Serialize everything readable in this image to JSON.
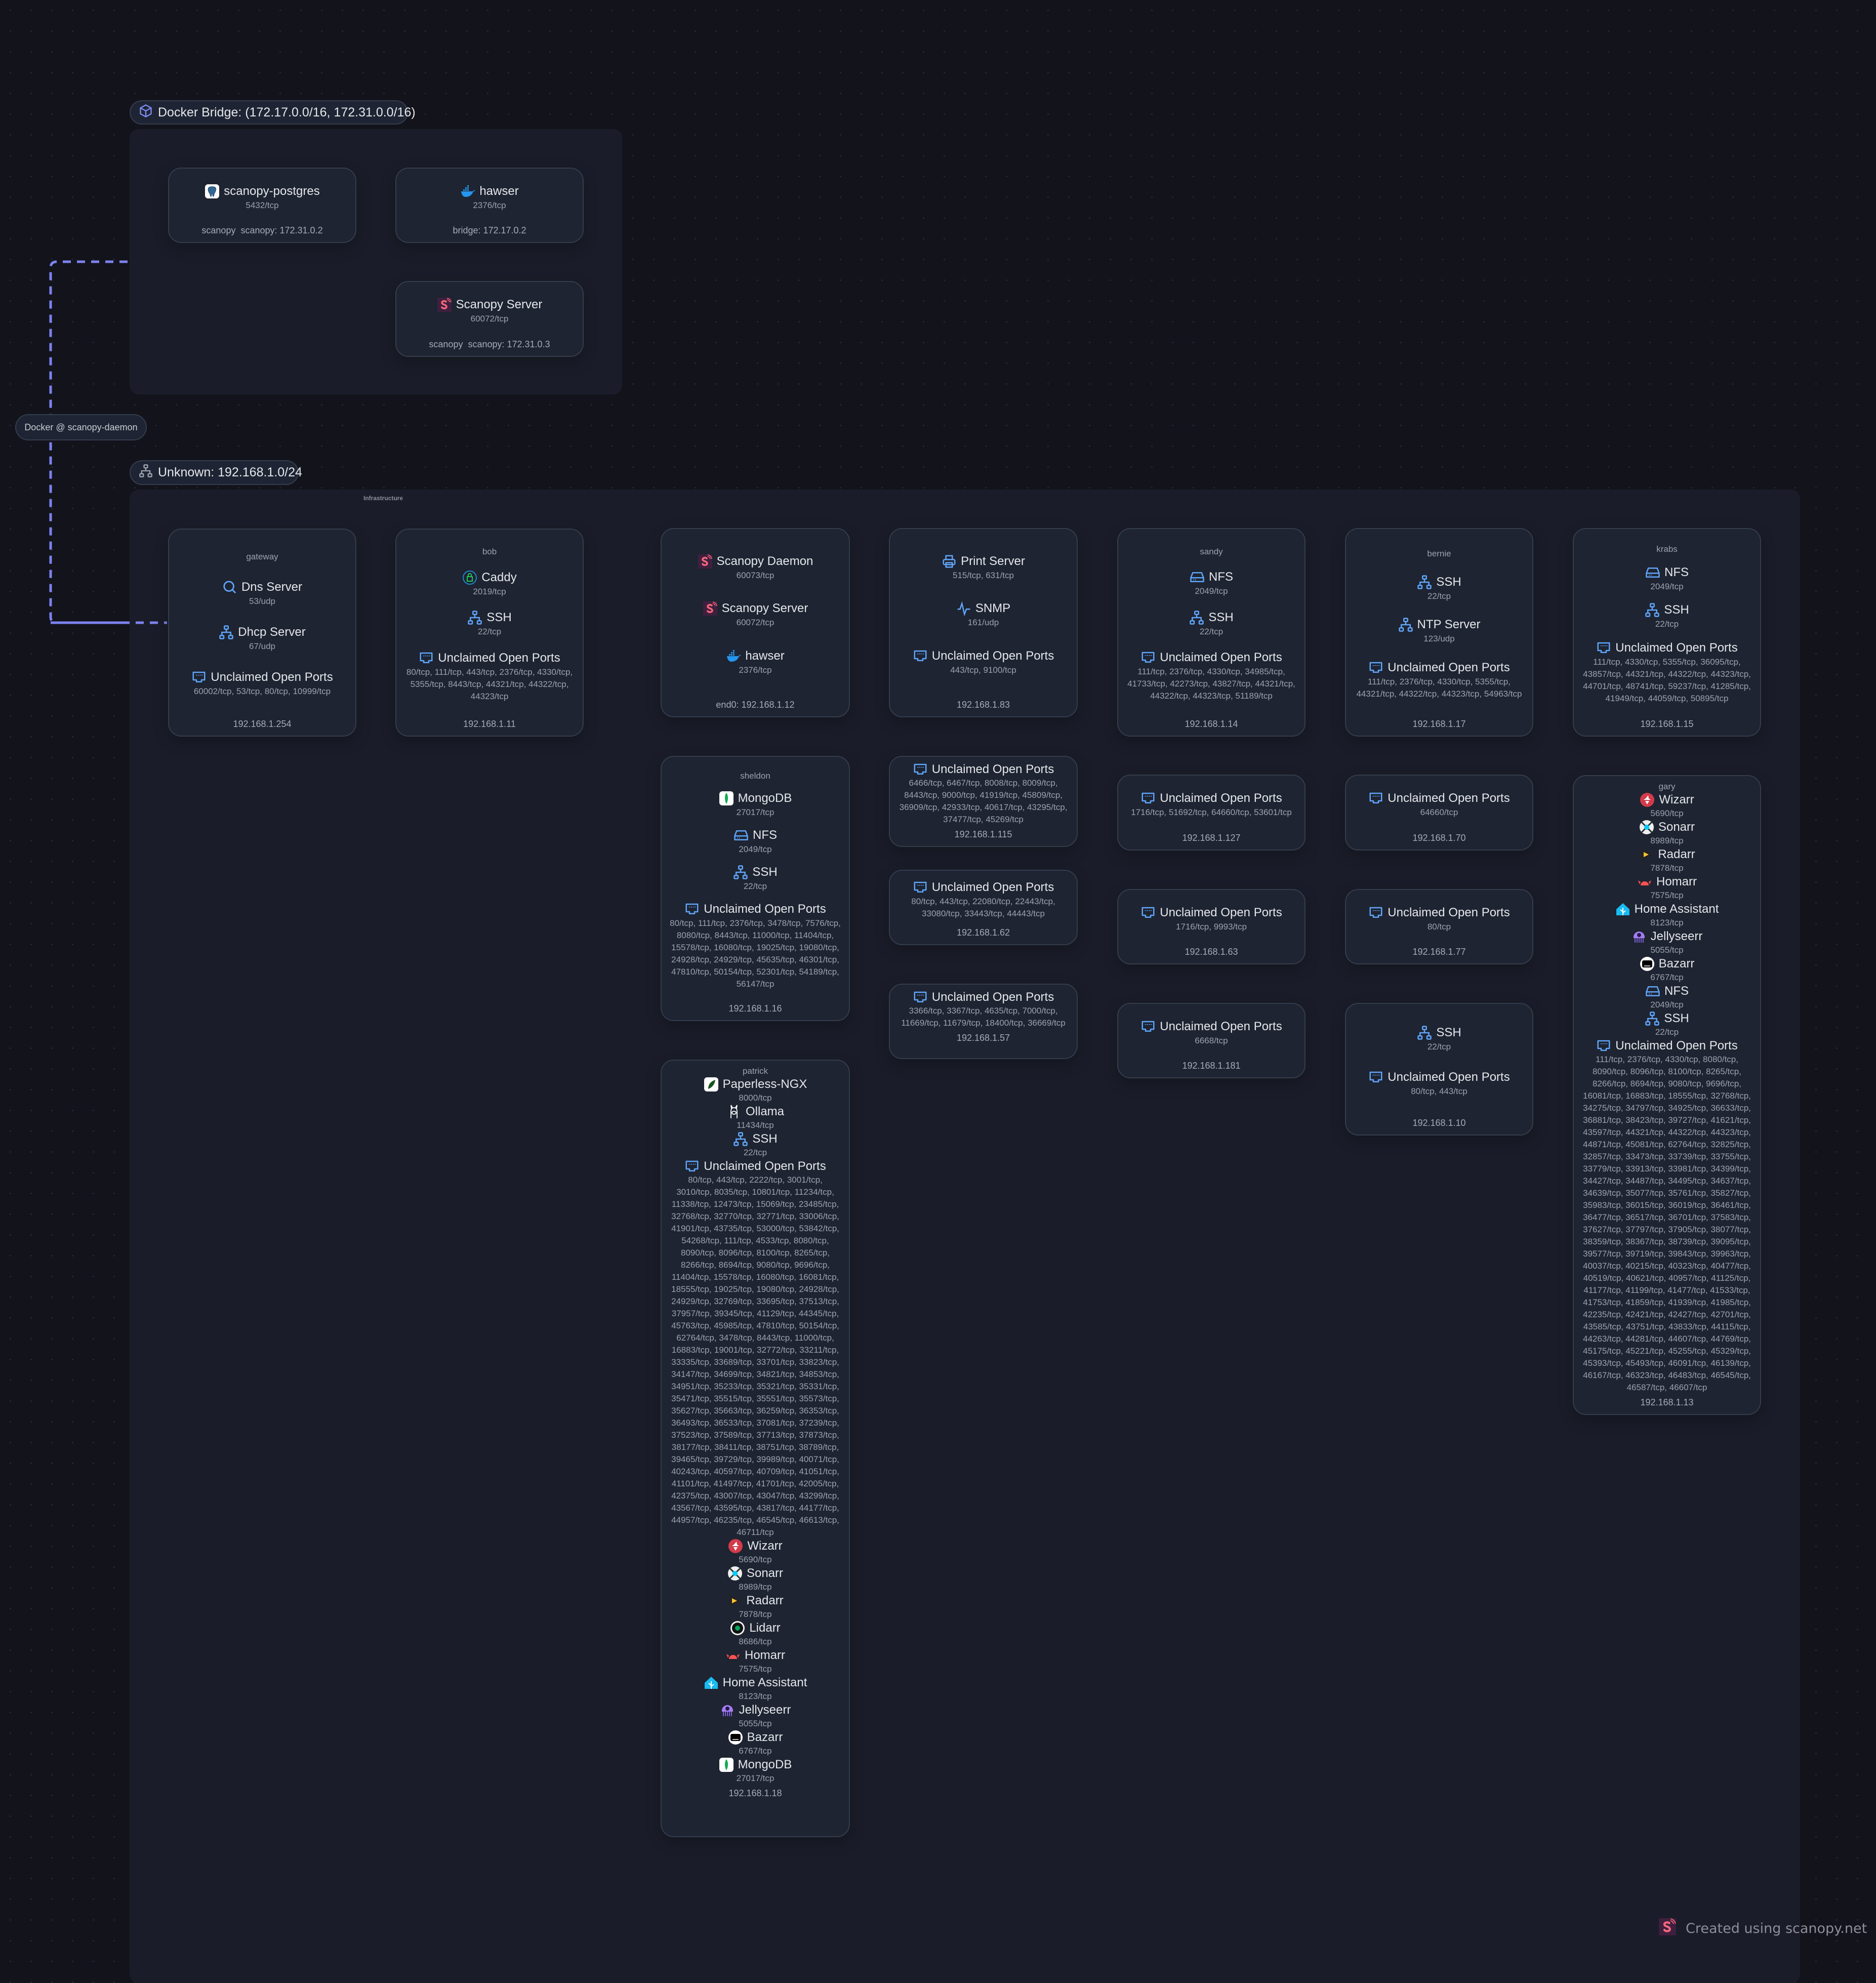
{
  "colors": {
    "canvas": "#13131c",
    "zone": "#1a1d29",
    "card": "#1f2533",
    "border": "#343c4c",
    "edge": "#7c83f0",
    "icon_blue": "#60a5fa"
  },
  "edge": {
    "label": "Docker @ scanopy-daemon",
    "style": "dashed"
  },
  "watermark": {
    "icon": "scanopy",
    "text": "Created using scanopy.net"
  },
  "docker_bridge": {
    "icon": "cube",
    "label": "Docker Bridge: (172.17.0.0/16, 172.31.0.0/16)",
    "hosts": [
      {
        "services": [
          {
            "name": "scanopy-postgres",
            "icon": "postgres",
            "ports": "5432/tcp"
          }
        ],
        "footer": "scanopy  scanopy: 172.31.0.2"
      },
      {
        "services": [
          {
            "name": "hawser",
            "icon": "docker",
            "ports": "2376/tcp"
          }
        ],
        "footer": "bridge: 172.17.0.2"
      },
      {
        "services": [
          {
            "name": "Scanopy Server",
            "icon": "scanopy",
            "ports": "60072/tcp"
          }
        ],
        "footer": "scanopy  scanopy: 172.31.0.3"
      }
    ]
  },
  "unknown_subnet": {
    "icon": "network",
    "label": "Unknown: 192.168.1.0/24",
    "infrastructure_label": "Infrastructure",
    "hosts": [
      {
        "title": "gateway",
        "services": [
          {
            "name": "Dns Server",
            "icon": "search",
            "ports": "53/udp"
          },
          {
            "name": "Dhcp Server",
            "icon": "network",
            "ports": "67/udp"
          },
          {
            "name": "Unclaimed Open Ports",
            "icon": "ethernet-port",
            "ports": "60002/tcp, 53/tcp, 80/tcp, 10999/tcp"
          }
        ],
        "footer": "192.168.1.254"
      },
      {
        "title": "bob",
        "services": [
          {
            "name": "Caddy",
            "icon": "caddy",
            "ports": "2019/tcp"
          },
          {
            "name": "SSH",
            "icon": "network",
            "ports": "22/tcp"
          },
          {
            "name": "Unclaimed Open Ports",
            "icon": "ethernet-port",
            "ports": "80/tcp, 111/tcp, 443/tcp, 2376/tcp, 4330/tcp, 5355/tcp, 8443/tcp, 44321/tcp, 44322/tcp, 44323/tcp"
          }
        ],
        "footer": "192.168.1.11"
      },
      {
        "services": [
          {
            "name": "Scanopy Daemon",
            "icon": "scanopy",
            "ports": "60073/tcp"
          },
          {
            "name": "Scanopy Server",
            "icon": "scanopy",
            "ports": "60072/tcp"
          },
          {
            "name": "hawser",
            "icon": "docker",
            "ports": "2376/tcp"
          }
        ],
        "footer": "end0: 192.168.1.12"
      },
      {
        "services": [
          {
            "name": "Print Server",
            "icon": "printer",
            "ports": "515/tcp, 631/tcp"
          },
          {
            "name": "SNMP",
            "icon": "activity",
            "ports": "161/udp"
          },
          {
            "name": "Unclaimed Open Ports",
            "icon": "ethernet-port",
            "ports": "443/tcp, 9100/tcp"
          }
        ],
        "footer": "192.168.1.83"
      },
      {
        "title": "sandy",
        "services": [
          {
            "name": "NFS",
            "icon": "hard-drive",
            "ports": "2049/tcp"
          },
          {
            "name": "SSH",
            "icon": "network",
            "ports": "22/tcp"
          },
          {
            "name": "Unclaimed Open Ports",
            "icon": "ethernet-port",
            "ports": "111/tcp, 2376/tcp, 4330/tcp, 34985/tcp, 41733/tcp, 42273/tcp, 43827/tcp, 44321/tcp, 44322/tcp, 44323/tcp, 51189/tcp"
          }
        ],
        "footer": "192.168.1.14"
      },
      {
        "title": "bernie",
        "services": [
          {
            "name": "SSH",
            "icon": "network",
            "ports": "22/tcp"
          },
          {
            "name": "NTP Server",
            "icon": "network",
            "ports": "123/udp"
          },
          {
            "name": "Unclaimed Open Ports",
            "icon": "ethernet-port",
            "ports": "111/tcp, 2376/tcp, 4330/tcp, 5355/tcp, 44321/tcp, 44322/tcp, 44323/tcp, 54963/tcp"
          }
        ],
        "footer": "192.168.1.17"
      },
      {
        "title": "krabs",
        "services": [
          {
            "name": "NFS",
            "icon": "hard-drive",
            "ports": "2049/tcp"
          },
          {
            "name": "SSH",
            "icon": "network",
            "ports": "22/tcp"
          },
          {
            "name": "Unclaimed Open Ports",
            "icon": "ethernet-port",
            "ports": "111/tcp, 4330/tcp, 5355/tcp, 36095/tcp, 43857/tcp, 44321/tcp, 44322/tcp, 44323/tcp, 44701/tcp, 48741/tcp, 59237/tcp, 41285/tcp, 41949/tcp, 44059/tcp, 50895/tcp"
          }
        ],
        "footer": "192.168.1.15"
      },
      {
        "title": "sheldon",
        "services": [
          {
            "name": "MongoDB",
            "icon": "mongodb",
            "ports": "27017/tcp"
          },
          {
            "name": "NFS",
            "icon": "hard-drive",
            "ports": "2049/tcp"
          },
          {
            "name": "SSH",
            "icon": "network",
            "ports": "22/tcp"
          },
          {
            "name": "Unclaimed Open Ports",
            "icon": "ethernet-port",
            "ports": "80/tcp, 111/tcp, 2376/tcp, 3478/tcp, 7576/tcp, 8080/tcp, 8443/tcp, 11000/tcp, 11404/tcp, 15578/tcp, 16080/tcp, 19025/tcp, 19080/tcp, 24928/tcp, 24929/tcp, 45635/tcp, 46301/tcp, 47810/tcp, 50154/tcp, 52301/tcp, 54189/tcp, 56147/tcp"
          }
        ],
        "footer": "192.168.1.16"
      },
      {
        "services": [
          {
            "name": "Unclaimed Open Ports",
            "icon": "ethernet-port",
            "ports": "6466/tcp, 6467/tcp, 8008/tcp, 8009/tcp, 8443/tcp, 9000/tcp, 41919/tcp, 45809/tcp, 36909/tcp, 42933/tcp, 40617/tcp, 43295/tcp, 37477/tcp, 45269/tcp"
          }
        ],
        "footer": "192.168.1.115"
      },
      {
        "services": [
          {
            "name": "Unclaimed Open Ports",
            "icon": "ethernet-port",
            "ports": "80/tcp, 443/tcp, 22080/tcp, 22443/tcp, 33080/tcp, 33443/tcp, 44443/tcp"
          }
        ],
        "footer": "192.168.1.62"
      },
      {
        "services": [
          {
            "name": "Unclaimed Open Ports",
            "icon": "ethernet-port",
            "ports": "3366/tcp, 3367/tcp, 4635/tcp, 7000/tcp, 11669/tcp, 11679/tcp, 18400/tcp, 36669/tcp"
          }
        ],
        "footer": "192.168.1.57"
      },
      {
        "services": [
          {
            "name": "Unclaimed Open Ports",
            "icon": "ethernet-port",
            "ports": "1716/tcp, 51692/tcp, 64660/tcp, 53601/tcp"
          }
        ],
        "footer": "192.168.1.127"
      },
      {
        "services": [
          {
            "name": "Unclaimed Open Ports",
            "icon": "ethernet-port",
            "ports": "1716/tcp, 9993/tcp"
          }
        ],
        "footer": "192.168.1.63"
      },
      {
        "services": [
          {
            "name": "Unclaimed Open Ports",
            "icon": "ethernet-port",
            "ports": "6668/tcp"
          }
        ],
        "footer": "192.168.1.181"
      },
      {
        "services": [
          {
            "name": "Unclaimed Open Ports",
            "icon": "ethernet-port",
            "ports": "64660/tcp"
          }
        ],
        "footer": "192.168.1.70"
      },
      {
        "services": [
          {
            "name": "Unclaimed Open Ports",
            "icon": "ethernet-port",
            "ports": "80/tcp"
          }
        ],
        "footer": "192.168.1.77"
      },
      {
        "services": [
          {
            "name": "SSH",
            "icon": "network",
            "ports": "22/tcp"
          },
          {
            "name": "Unclaimed Open Ports",
            "icon": "ethernet-port",
            "ports": "80/tcp, 443/tcp"
          }
        ],
        "footer": "192.168.1.10"
      },
      {
        "title": "gary",
        "services": [
          {
            "name": "Wizarr",
            "icon": "wizarr",
            "ports": "5690/tcp"
          },
          {
            "name": "Sonarr",
            "icon": "sonarr",
            "ports": "8989/tcp"
          },
          {
            "name": "Radarr",
            "icon": "radarr",
            "ports": "7878/tcp"
          },
          {
            "name": "Homarr",
            "icon": "homarr",
            "ports": "7575/tcp"
          },
          {
            "name": "Home Assistant",
            "icon": "home-assistant",
            "ports": "8123/tcp"
          },
          {
            "name": "Jellyseerr",
            "icon": "jellyseerr",
            "ports": "5055/tcp"
          },
          {
            "name": "Bazarr",
            "icon": "bazarr",
            "ports": "6767/tcp"
          },
          {
            "name": "NFS",
            "icon": "hard-drive",
            "ports": "2049/tcp"
          },
          {
            "name": "SSH",
            "icon": "network",
            "ports": "22/tcp"
          },
          {
            "name": "Unclaimed Open Ports",
            "icon": "ethernet-port",
            "ports": "111/tcp, 2376/tcp, 4330/tcp, 8080/tcp, 8090/tcp, 8096/tcp, 8100/tcp, 8265/tcp, 8266/tcp, 8694/tcp, 9080/tcp, 9696/tcp, 16081/tcp, 16883/tcp, 18555/tcp, 32768/tcp, 34275/tcp, 34797/tcp, 34925/tcp, 36633/tcp, 36881/tcp, 38423/tcp, 39727/tcp, 41621/tcp, 43597/tcp, 44321/tcp, 44322/tcp, 44323/tcp, 44871/tcp, 45081/tcp, 62764/tcp, 32825/tcp, 32857/tcp, 33473/tcp, 33739/tcp, 33755/tcp, 33779/tcp, 33913/tcp, 33981/tcp, 34399/tcp, 34427/tcp, 34487/tcp, 34495/tcp, 34637/tcp, 34639/tcp, 35077/tcp, 35761/tcp, 35827/tcp, 35983/tcp, 36015/tcp, 36019/tcp, 36461/tcp, 36477/tcp, 36517/tcp, 36701/tcp, 37583/tcp, 37627/tcp, 37797/tcp, 37905/tcp, 38077/tcp, 38359/tcp, 38367/tcp, 38739/tcp, 39095/tcp, 39577/tcp, 39719/tcp, 39843/tcp, 39963/tcp, 40037/tcp, 40215/tcp, 40323/tcp, 40477/tcp, 40519/tcp, 40621/tcp, 40957/tcp, 41125/tcp, 41177/tcp, 41199/tcp, 41477/tcp, 41533/tcp, 41753/tcp, 41859/tcp, 41939/tcp, 41985/tcp, 42235/tcp, 42421/tcp, 42427/tcp, 42701/tcp, 43585/tcp, 43751/tcp, 43833/tcp, 44115/tcp, 44263/tcp, 44281/tcp, 44607/tcp, 44769/tcp, 45175/tcp, 45221/tcp, 45255/tcp, 45329/tcp, 45393/tcp, 45493/tcp, 46091/tcp, 46139/tcp, 46167/tcp, 46323/tcp, 46483/tcp, 46545/tcp, 46587/tcp, 46607/tcp"
          }
        ],
        "footer": "192.168.1.13"
      },
      {
        "title": "patrick",
        "services": [
          {
            "name": "Paperless-NGX",
            "icon": "paperless",
            "ports": "8000/tcp"
          },
          {
            "name": "Ollama",
            "icon": "ollama",
            "ports": "11434/tcp"
          },
          {
            "name": "SSH",
            "icon": "network",
            "ports": "22/tcp"
          },
          {
            "name": "Unclaimed Open Ports",
            "icon": "ethernet-port",
            "ports": "80/tcp, 443/tcp, 2222/tcp, 3001/tcp, 3010/tcp, 8035/tcp, 10801/tcp, 11234/tcp, 11338/tcp, 12473/tcp, 15069/tcp, 23485/tcp, 32768/tcp, 32770/tcp, 32771/tcp, 33006/tcp, 41901/tcp, 43735/tcp, 53000/tcp, 53842/tcp, 54268/tcp, 111/tcp, 4533/tcp, 8080/tcp, 8090/tcp, 8096/tcp, 8100/tcp, 8265/tcp, 8266/tcp, 8694/tcp, 9080/tcp, 9696/tcp, 11404/tcp, 15578/tcp, 16080/tcp, 16081/tcp, 18555/tcp, 19025/tcp, 19080/tcp, 24928/tcp, 24929/tcp, 32769/tcp, 33695/tcp, 37513/tcp, 37957/tcp, 39345/tcp, 41129/tcp, 44345/tcp, 45763/tcp, 45985/tcp, 47810/tcp, 50154/tcp, 62764/tcp, 3478/tcp, 8443/tcp, 11000/tcp, 16883/tcp, 19001/tcp, 32772/tcp, 33211/tcp, 33335/tcp, 33689/tcp, 33701/tcp, 33823/tcp, 34147/tcp, 34699/tcp, 34821/tcp, 34853/tcp, 34951/tcp, 35233/tcp, 35321/tcp, 35331/tcp, 35471/tcp, 35515/tcp, 35551/tcp, 35573/tcp, 35627/tcp, 35663/tcp, 36259/tcp, 36353/tcp, 36493/tcp, 36533/tcp, 37081/tcp, 37239/tcp, 37523/tcp, 37589/tcp, 37713/tcp, 37873/tcp, 38177/tcp, 38411/tcp, 38751/tcp, 38789/tcp, 39465/tcp, 39729/tcp, 39989/tcp, 40071/tcp, 40243/tcp, 40597/tcp, 40709/tcp, 41051/tcp, 41101/tcp, 41497/tcp, 41701/tcp, 42005/tcp, 42375/tcp, 43007/tcp, 43047/tcp, 43299/tcp, 43567/tcp, 43595/tcp, 43817/tcp, 44177/tcp, 44957/tcp, 46235/tcp, 46545/tcp, 46613/tcp, 46711/tcp"
          },
          {
            "name": "Wizarr",
            "icon": "wizarr",
            "ports": "5690/tcp"
          },
          {
            "name": "Sonarr",
            "icon": "sonarr",
            "ports": "8989/tcp"
          },
          {
            "name": "Radarr",
            "icon": "radarr",
            "ports": "7878/tcp"
          },
          {
            "name": "Lidarr",
            "icon": "lidarr",
            "ports": "8686/tcp"
          },
          {
            "name": "Homarr",
            "icon": "homarr",
            "ports": "7575/tcp"
          },
          {
            "name": "Home Assistant",
            "icon": "home-assistant",
            "ports": "8123/tcp"
          },
          {
            "name": "Jellyseerr",
            "icon": "jellyseerr",
            "ports": "5055/tcp"
          },
          {
            "name": "Bazarr",
            "icon": "bazarr",
            "ports": "6767/tcp"
          },
          {
            "name": "MongoDB",
            "icon": "mongodb",
            "ports": "27017/tcp"
          }
        ],
        "footer": "192.168.1.18"
      }
    ]
  }
}
